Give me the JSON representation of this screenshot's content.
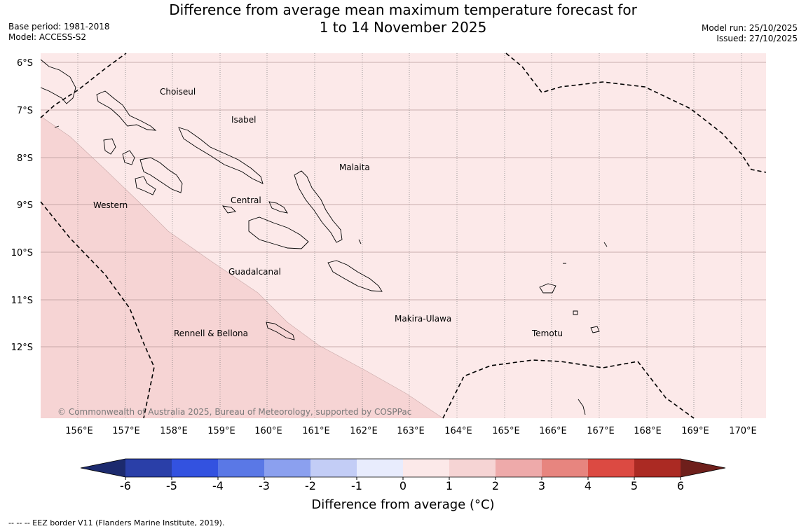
{
  "title_line1": "Difference from average mean maximum temperature forecast for",
  "title_line2": "1 to 14 November 2025",
  "base_period": "Base period: 1981-2018",
  "model": "Model: ACCESS-S2",
  "model_run": "Model run: 25/10/2025",
  "issued": "Issued: 27/10/2025",
  "lat_labels": [
    "6°S",
    "7°S",
    "8°S",
    "9°S",
    "10°S",
    "11°S",
    "12°S"
  ],
  "lon_labels": [
    "156°E",
    "157°E",
    "158°E",
    "159°E",
    "160°E",
    "161°E",
    "162°E",
    "163°E",
    "164°E",
    "165°E",
    "166°E",
    "167°E",
    "168°E",
    "169°E",
    "170°E"
  ],
  "regions": {
    "choiseul": "Choiseul",
    "isabel": "Isabel",
    "malaita": "Malaita",
    "central": "Central",
    "western": "Western",
    "guadalcanal": "Guadalcanal",
    "makira": "Makira-Ulawa",
    "temotu": "Temotu",
    "rennell": "Rennell & Bellona"
  },
  "copyright": "© Commonwealth of Australia 2025, Bureau of Meteorology, supported by COSPPac",
  "colorbar": {
    "title": "Difference from average (°C)",
    "ticks": [
      "-6",
      "-5",
      "-4",
      "-3",
      "-2",
      "-1",
      "0",
      "1",
      "2",
      "3",
      "4",
      "5",
      "6"
    ],
    "colors": [
      "#2a3fa8",
      "#3352e0",
      "#5a78e6",
      "#8ba0ef",
      "#c3cdf6",
      "#e8ecfd",
      "#fce9e9",
      "#f6d4d4",
      "#eeaaaa",
      "#e7857f",
      "#dc4a42",
      "#ab2a23"
    ],
    "under_color": "#1c2a6e",
    "over_color": "#6e1f1b"
  },
  "map_fills": {
    "band_0_1": "#fce9e9",
    "band_1_2": "#f6d4d4"
  },
  "footnote": "--  --  -- EEZ border V11 (Flanders Marine Institute, 2019)."
}
